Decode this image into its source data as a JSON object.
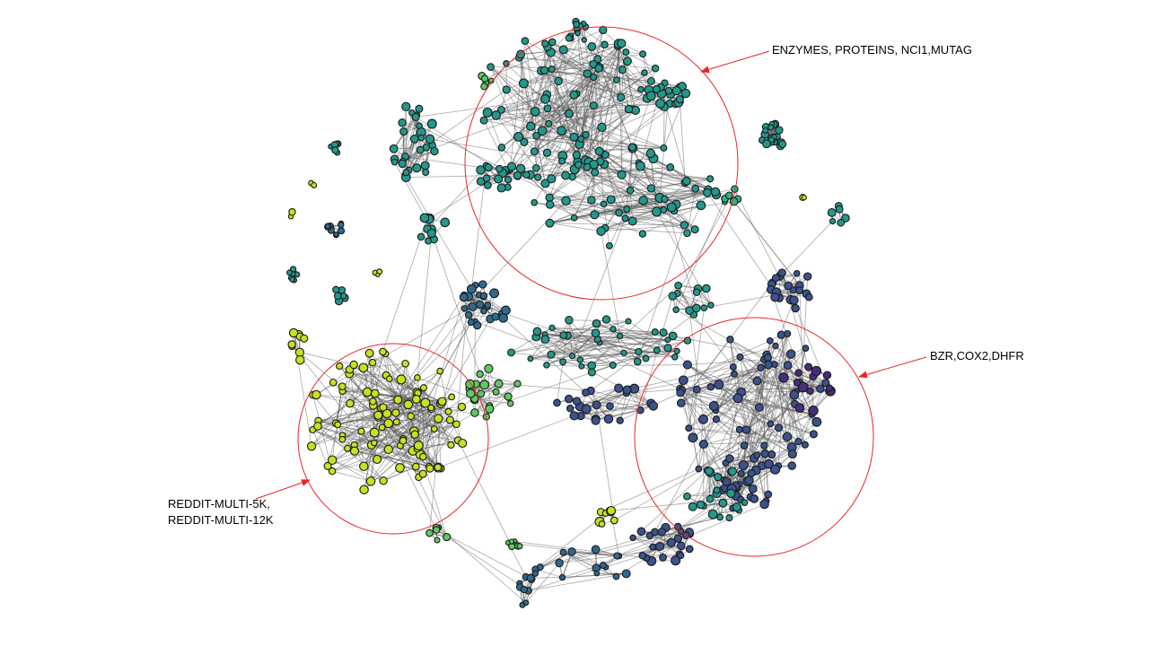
{
  "annotations": {
    "top_cluster": "ENZYMES, PROTEINS, NCI1,MUTAG",
    "right_cluster": "BZR,COX2,DHFR",
    "left_cluster_line1": "REDDIT-MULTI-5K,",
    "left_cluster_line2": "REDDIT-MULTI-12K"
  },
  "colors": {
    "highlight_circle": "#e8262a",
    "arrow": "#e8262a",
    "edge": "#555555",
    "node_stroke": "#1a1a1a",
    "teal": "#23988b",
    "teal_light": "#2fb48a",
    "green": "#5ec962",
    "yellow_green": "#c8e020",
    "blue": "#31688e",
    "indigo": "#3b528b",
    "purple": "#472d7b"
  }
}
